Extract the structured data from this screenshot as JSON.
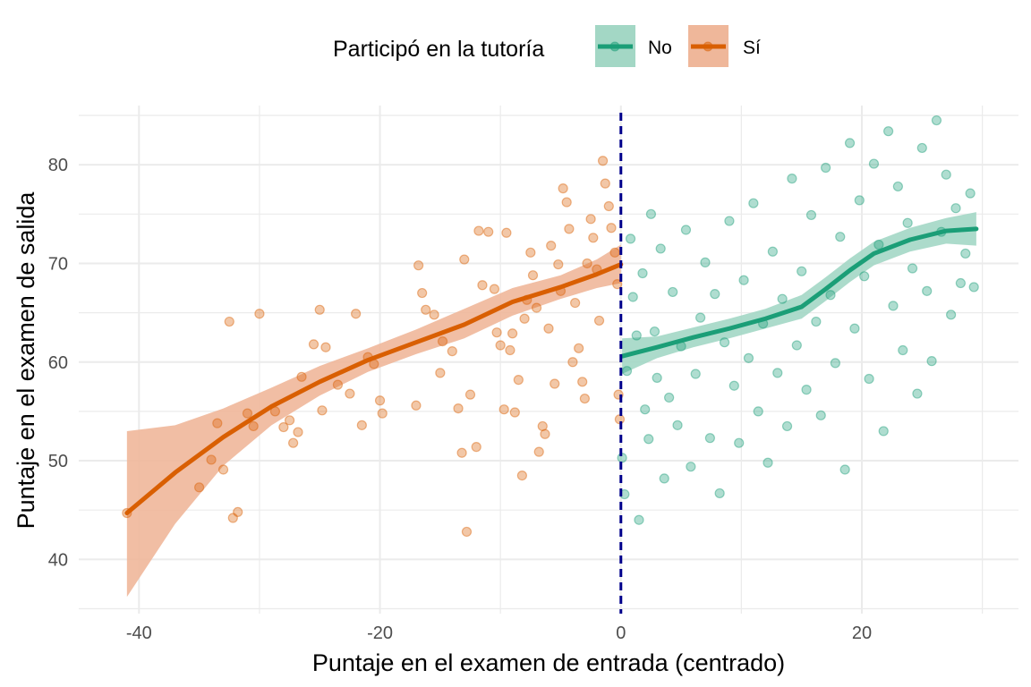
{
  "chart_data": {
    "type": "scatter",
    "xlabel": "Puntaje en el examen de entrada (centrado)",
    "ylabel": "Puntaje en el examen de salida",
    "xlim": [
      -45,
      33
    ],
    "ylim": [
      34.5,
      86
    ],
    "x_ticks": [
      -40,
      -20,
      0,
      20
    ],
    "x_tick_labels": [
      "-40",
      "-20",
      "0",
      "20"
    ],
    "y_ticks": [
      40,
      50,
      60,
      70,
      80
    ],
    "y_tick_labels": [
      "40",
      "50",
      "60",
      "70",
      "80"
    ],
    "grid": true,
    "cutoff": 0,
    "legend": {
      "title": "Participó en la tutoría",
      "position": "top"
    },
    "series": [
      {
        "name": "No",
        "color": "#1b9e77",
        "smooth": [
          [
            0.1,
            60.6
          ],
          [
            3,
            61.5
          ],
          [
            6,
            62.5
          ],
          [
            9,
            63.4
          ],
          [
            12,
            64.4
          ],
          [
            15,
            65.6
          ],
          [
            17,
            67.4
          ],
          [
            19,
            69.3
          ],
          [
            21,
            71
          ],
          [
            24,
            72.4
          ],
          [
            27,
            73.3
          ],
          [
            29.5,
            73.5
          ]
        ],
        "band_upper": [
          [
            0.1,
            62.4
          ],
          [
            3,
            62.6
          ],
          [
            6,
            63.5
          ],
          [
            9,
            64.4
          ],
          [
            12,
            65.4
          ],
          [
            15,
            66.8
          ],
          [
            17,
            68.6
          ],
          [
            19,
            70.5
          ],
          [
            21,
            72.2
          ],
          [
            24,
            73.6
          ],
          [
            27,
            74.6
          ],
          [
            29.5,
            75.2
          ]
        ],
        "band_lower": [
          [
            0.1,
            58.8
          ],
          [
            3,
            60.4
          ],
          [
            6,
            61.5
          ],
          [
            9,
            62.4
          ],
          [
            12,
            63.4
          ],
          [
            15,
            64.4
          ],
          [
            17,
            66.2
          ],
          [
            19,
            68.1
          ],
          [
            21,
            69.8
          ],
          [
            24,
            71.2
          ],
          [
            27,
            72
          ],
          [
            29.5,
            71.8
          ]
        ]
      },
      {
        "name": "Sí",
        "color": "#d95f02",
        "smooth": [
          [
            -41,
            44.7
          ],
          [
            -37,
            48.8
          ],
          [
            -33,
            52.4
          ],
          [
            -29,
            55.5
          ],
          [
            -25,
            58
          ],
          [
            -21,
            60.2
          ],
          [
            -17,
            62
          ],
          [
            -13,
            63.8
          ],
          [
            -9,
            66.1
          ],
          [
            -5,
            67.6
          ],
          [
            -2,
            68.9
          ],
          [
            0,
            69.9
          ]
        ],
        "band_upper": [
          [
            -41,
            53
          ],
          [
            -37,
            53.6
          ],
          [
            -33,
            55.3
          ],
          [
            -29,
            57.4
          ],
          [
            -25,
            59.6
          ],
          [
            -21,
            61.4
          ],
          [
            -17,
            63.3
          ],
          [
            -13,
            65.4
          ],
          [
            -9,
            67.5
          ],
          [
            -5,
            68.8
          ],
          [
            -2,
            70.4
          ],
          [
            0,
            71.9
          ]
        ],
        "band_lower": [
          [
            -41,
            36.2
          ],
          [
            -37,
            43.6
          ],
          [
            -33,
            49.5
          ],
          [
            -29,
            53.6
          ],
          [
            -25,
            56.6
          ],
          [
            -21,
            59
          ],
          [
            -17,
            60.8
          ],
          [
            -13,
            62.4
          ],
          [
            -9,
            64.7
          ],
          [
            -5,
            66.4
          ],
          [
            -2,
            67.5
          ],
          [
            0,
            68
          ]
        ]
      }
    ],
    "points_note_values": {
      "Sí": [
        [
          -41,
          44.7
        ],
        [
          -35,
          47.3
        ],
        [
          -34,
          50.1
        ],
        [
          -33.5,
          53.8
        ],
        [
          -33,
          49.1
        ],
        [
          -32.5,
          64.1
        ],
        [
          -32.2,
          44.2
        ],
        [
          -31.8,
          44.8
        ],
        [
          -31,
          54.8
        ],
        [
          -30.5,
          53.5
        ],
        [
          -30,
          64.9
        ],
        [
          -28.7,
          55
        ],
        [
          -28,
          53.4
        ],
        [
          -27.5,
          54.1
        ],
        [
          -27.2,
          51.8
        ],
        [
          -26.8,
          52.9
        ],
        [
          -26.5,
          58.5
        ],
        [
          -25.5,
          61.8
        ],
        [
          -25,
          65.3
        ],
        [
          -24.8,
          55.1
        ],
        [
          -24.5,
          61.5
        ],
        [
          -23.5,
          57.7
        ],
        [
          -22.5,
          56.8
        ],
        [
          -22,
          64.9
        ],
        [
          -21.5,
          53.6
        ],
        [
          -21,
          60.5
        ],
        [
          -20.5,
          59.8
        ],
        [
          -20,
          56.1
        ],
        [
          -19.8,
          54.8
        ],
        [
          -17,
          55.6
        ],
        [
          -16.8,
          69.8
        ],
        [
          -16.5,
          67
        ],
        [
          -16.2,
          65.3
        ],
        [
          -15.5,
          64.8
        ],
        [
          -15,
          58.9
        ],
        [
          -14.8,
          62.1
        ],
        [
          -14,
          61.1
        ],
        [
          -13.5,
          55.3
        ],
        [
          -13.2,
          50.8
        ],
        [
          -13,
          70.4
        ],
        [
          -12.8,
          42.8
        ],
        [
          -12.5,
          56.7
        ],
        [
          -12,
          51.4
        ],
        [
          -11.8,
          73.3
        ],
        [
          -11.5,
          67.8
        ],
        [
          -11,
          73.2
        ],
        [
          -10.5,
          67.4
        ],
        [
          -10.3,
          63
        ],
        [
          -10,
          61.7
        ],
        [
          -9.7,
          55.2
        ],
        [
          -9.5,
          73.1
        ],
        [
          -9.2,
          61.2
        ],
        [
          -9,
          62.9
        ],
        [
          -8.8,
          54.9
        ],
        [
          -8.5,
          58.2
        ],
        [
          -8.2,
          48.5
        ],
        [
          -8,
          64.4
        ],
        [
          -7.8,
          66.3
        ],
        [
          -7.5,
          71.1
        ],
        [
          -7.3,
          68.8
        ],
        [
          -7,
          65.5
        ],
        [
          -6.8,
          50.9
        ],
        [
          -6.5,
          53.5
        ],
        [
          -6.3,
          52.7
        ],
        [
          -6,
          63.4
        ],
        [
          -5.8,
          71.8
        ],
        [
          -5.5,
          57.8
        ],
        [
          -5.2,
          69.9
        ],
        [
          -5,
          67.2
        ],
        [
          -4.8,
          77.6
        ],
        [
          -4.5,
          76.2
        ],
        [
          -4.3,
          73.5
        ],
        [
          -4,
          60
        ],
        [
          -3.8,
          66
        ],
        [
          -3.5,
          61.4
        ],
        [
          -3.2,
          58
        ],
        [
          -3,
          56.3
        ],
        [
          -2.8,
          70
        ],
        [
          -2.5,
          74.5
        ],
        [
          -2.3,
          72.6
        ],
        [
          -2,
          69.4
        ],
        [
          -1.8,
          64.2
        ],
        [
          -1.5,
          80.4
        ],
        [
          -1.3,
          78.1
        ],
        [
          -1,
          75.8
        ],
        [
          -0.8,
          73.6
        ],
        [
          -0.5,
          71.1
        ],
        [
          -0.3,
          67.9
        ],
        [
          -0.2,
          56.7
        ],
        [
          -0.1,
          54.2
        ]
      ],
      "No": [
        [
          0.1,
          50.3
        ],
        [
          0.3,
          46.6
        ],
        [
          0.5,
          59.1
        ],
        [
          0.8,
          72.5
        ],
        [
          1,
          66.6
        ],
        [
          1.3,
          62.7
        ],
        [
          1.5,
          44
        ],
        [
          1.8,
          69
        ],
        [
          2,
          55.2
        ],
        [
          2.3,
          52.2
        ],
        [
          2.5,
          75
        ],
        [
          2.8,
          63.1
        ],
        [
          3,
          58.4
        ],
        [
          3.3,
          71.5
        ],
        [
          3.6,
          48.2
        ],
        [
          4,
          56.4
        ],
        [
          4.3,
          67.1
        ],
        [
          4.7,
          53.6
        ],
        [
          5,
          61.6
        ],
        [
          5.4,
          73.4
        ],
        [
          5.8,
          49.4
        ],
        [
          6.2,
          58.8
        ],
        [
          6.6,
          64.5
        ],
        [
          7,
          70.1
        ],
        [
          7.4,
          52.3
        ],
        [
          7.8,
          66.9
        ],
        [
          8.2,
          46.7
        ],
        [
          8.6,
          62
        ],
        [
          9,
          74.3
        ],
        [
          9.4,
          57.6
        ],
        [
          9.8,
          51.8
        ],
        [
          10.2,
          68.3
        ],
        [
          10.6,
          60.4
        ],
        [
          11,
          76.1
        ],
        [
          11.4,
          55
        ],
        [
          11.8,
          63.9
        ],
        [
          12.2,
          49.8
        ],
        [
          12.6,
          71.2
        ],
        [
          13,
          58.9
        ],
        [
          13.4,
          66.4
        ],
        [
          13.8,
          53.5
        ],
        [
          14.2,
          78.6
        ],
        [
          14.6,
          61.7
        ],
        [
          15,
          69.2
        ],
        [
          15.4,
          57.2
        ],
        [
          15.8,
          74.9
        ],
        [
          16.2,
          64.1
        ],
        [
          16.6,
          54.6
        ],
        [
          17,
          79.7
        ],
        [
          17.4,
          66.8
        ],
        [
          17.8,
          59.9
        ],
        [
          18.2,
          72.7
        ],
        [
          18.6,
          49.1
        ],
        [
          19,
          82.2
        ],
        [
          19.4,
          63.4
        ],
        [
          19.8,
          76.4
        ],
        [
          20.2,
          68.7
        ],
        [
          20.6,
          58.3
        ],
        [
          21,
          80.1
        ],
        [
          21.4,
          71.9
        ],
        [
          21.8,
          53
        ],
        [
          22.2,
          83.4
        ],
        [
          22.6,
          65.7
        ],
        [
          23,
          77.8
        ],
        [
          23.4,
          61.2
        ],
        [
          23.8,
          74.1
        ],
        [
          24.2,
          69.5
        ],
        [
          24.6,
          56.8
        ],
        [
          25,
          81.7
        ],
        [
          25.4,
          67.2
        ],
        [
          25.8,
          60.1
        ],
        [
          26.2,
          84.5
        ],
        [
          26.6,
          73.2
        ],
        [
          27,
          79
        ],
        [
          27.4,
          64.8
        ],
        [
          27.8,
          75.6
        ],
        [
          28.2,
          68
        ],
        [
          28.6,
          71
        ],
        [
          29,
          77.1
        ],
        [
          29.3,
          67.6
        ]
      ]
    }
  },
  "legend": {
    "title": "Participó en la tutoría",
    "items": [
      {
        "label": "No",
        "color": "#1b9e77",
        "fill": "#a3d7c5"
      },
      {
        "label": "Sí",
        "color": "#d95f02",
        "fill": "#efb79a"
      }
    ]
  }
}
